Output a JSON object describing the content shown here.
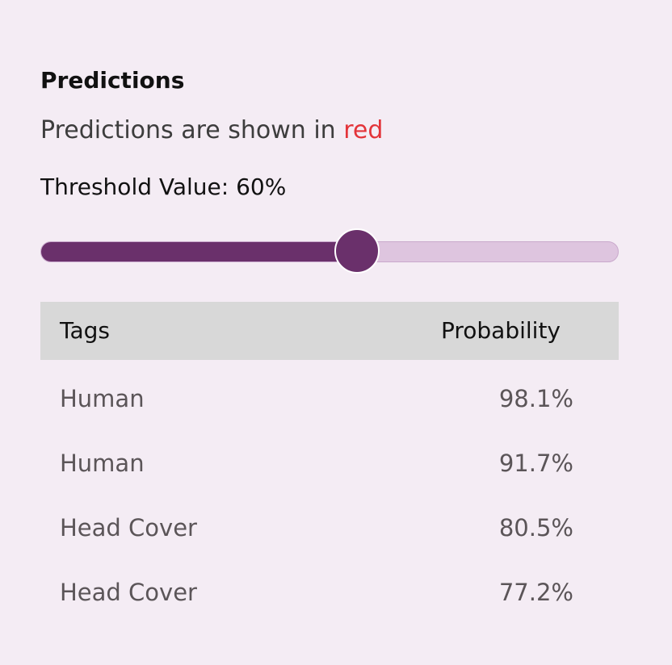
{
  "predictions": {
    "title": "Predictions",
    "subtitle_prefix": "Predictions are shown in",
    "subtitle_highlight": "red",
    "highlight_color": "#e3343a",
    "threshold_label": "Threshold Value: 60%",
    "threshold_fraction": 0.547,
    "accent_color": "#6a306b"
  },
  "table": {
    "columns": [
      "Tags",
      "Probability"
    ],
    "rows": [
      {
        "tag": "Human",
        "probability": "98.1%"
      },
      {
        "tag": "Human",
        "probability": "91.7%"
      },
      {
        "tag": "Head Cover",
        "probability": "80.5%"
      },
      {
        "tag": "Head Cover",
        "probability": "77.2%"
      }
    ]
  }
}
